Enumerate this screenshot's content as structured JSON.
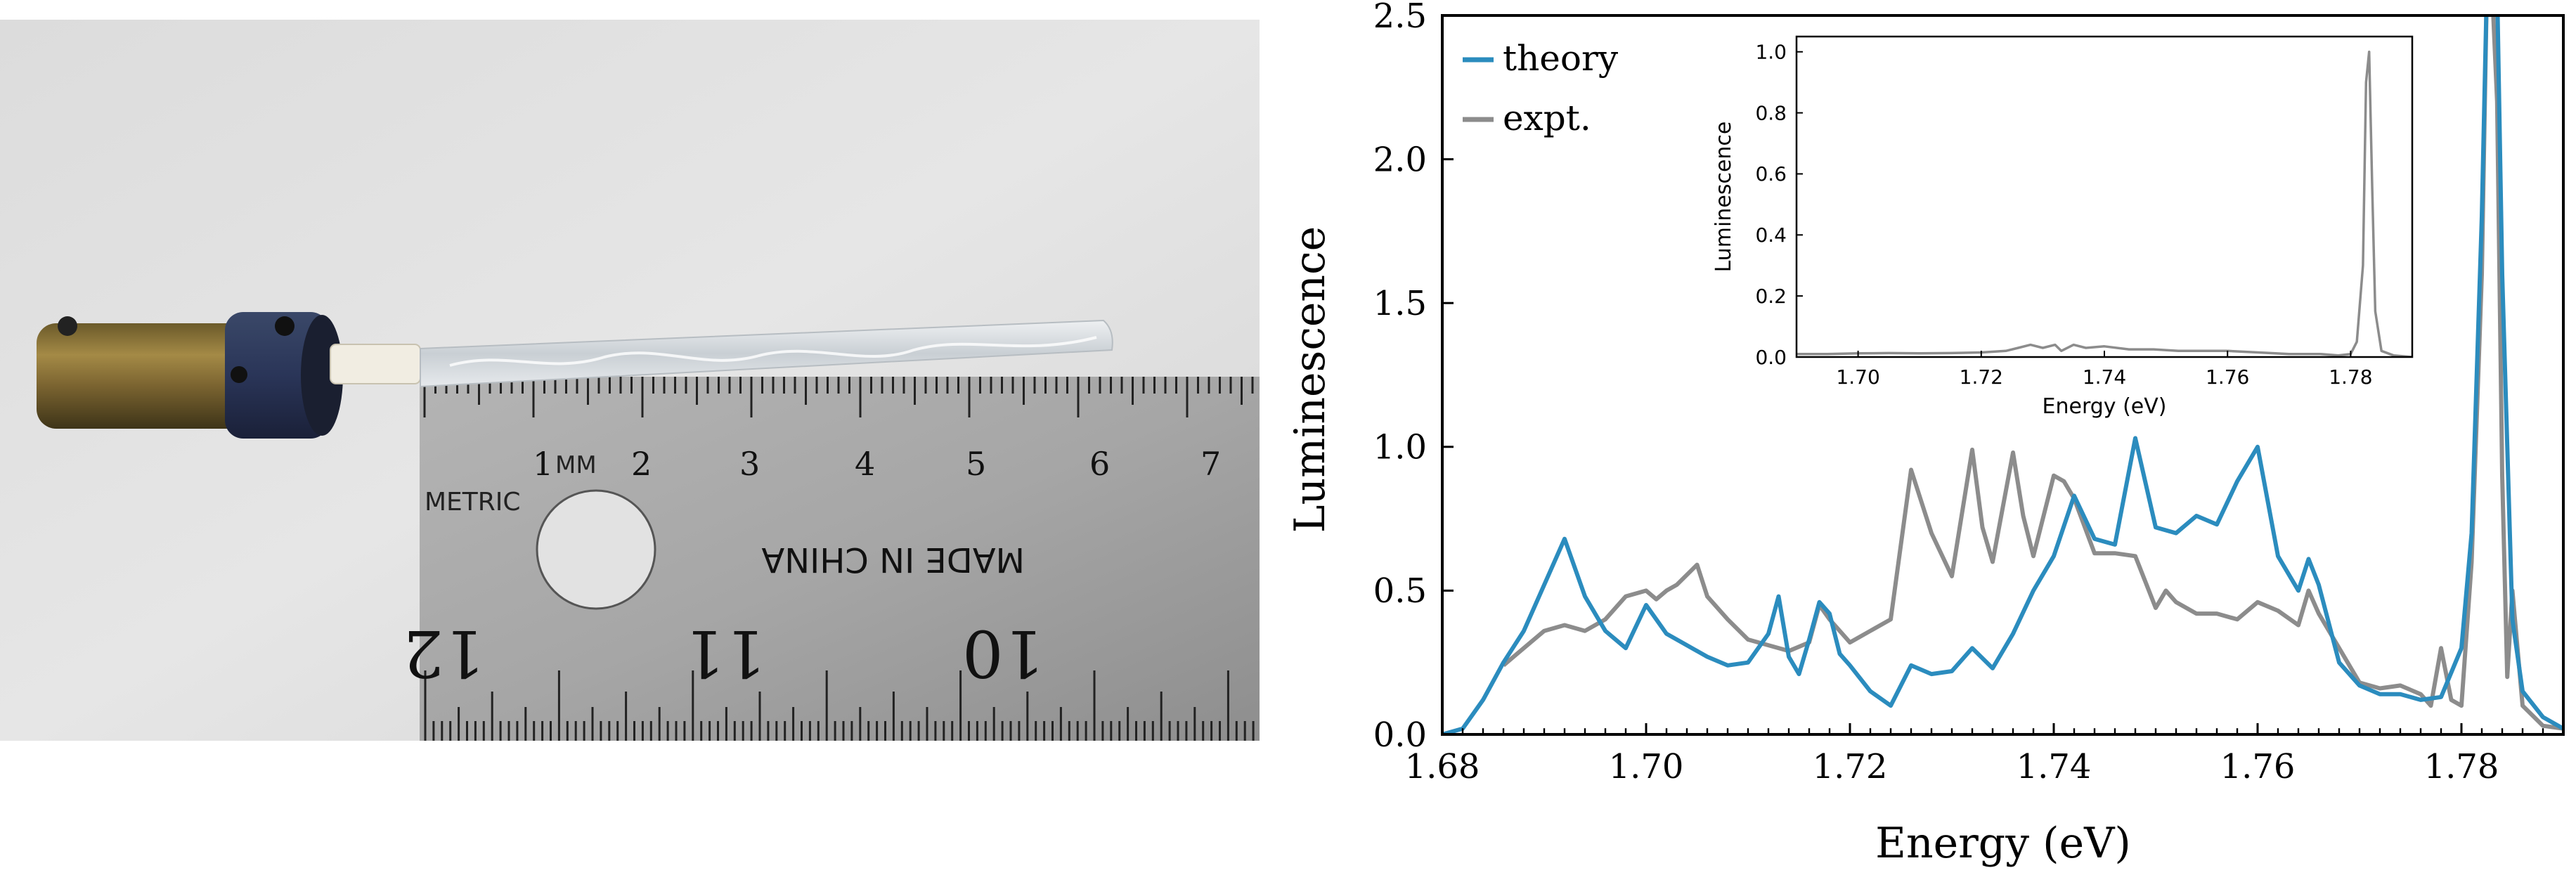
{
  "photo": {
    "ruler_text": {
      "metric": "METRIC",
      "mm": "MM",
      "made_in": "MADE IN CHINA",
      "mm_numbers": [
        "1",
        "2",
        "3",
        "4",
        "5",
        "6",
        "7"
      ],
      "inch_numbers": [
        "12",
        "11",
        "10"
      ]
    }
  },
  "chart_data": [
    {
      "type": "line",
      "xlabel": "Energy (eV)",
      "ylabel": "Luminescence",
      "xlim": [
        1.68,
        1.79
      ],
      "ylim": [
        0,
        2.5
      ],
      "xticks": [
        1.68,
        1.7,
        1.72,
        1.74,
        1.76,
        1.78
      ],
      "xtick_labels": [
        "1.68",
        "1.70",
        "1.72",
        "1.74",
        "1.76",
        "1.78"
      ],
      "yticks": [
        0.0,
        0.5,
        1.0,
        1.5,
        2.0,
        2.5
      ],
      "ytick_labels": [
        "0.0",
        "0.5",
        "1.0",
        "1.5",
        "2.0",
        "2.5"
      ],
      "legend": "top-left",
      "series": [
        {
          "name": "theory",
          "color": "#2b8cbe",
          "x": [
            1.68,
            1.682,
            1.684,
            1.686,
            1.688,
            1.69,
            1.692,
            1.694,
            1.696,
            1.698,
            1.7,
            1.702,
            1.704,
            1.706,
            1.708,
            1.71,
            1.712,
            1.713,
            1.714,
            1.715,
            1.716,
            1.717,
            1.718,
            1.719,
            1.72,
            1.722,
            1.724,
            1.726,
            1.728,
            1.73,
            1.732,
            1.734,
            1.736,
            1.738,
            1.74,
            1.742,
            1.744,
            1.746,
            1.748,
            1.75,
            1.752,
            1.754,
            1.756,
            1.758,
            1.76,
            1.762,
            1.764,
            1.765,
            1.766,
            1.768,
            1.77,
            1.772,
            1.774,
            1.776,
            1.778,
            1.78,
            1.781,
            1.782,
            1.7825,
            1.783,
            1.7835,
            1.784,
            1.785,
            1.786,
            1.788,
            1.79
          ],
          "y": [
            0.0,
            0.02,
            0.12,
            0.25,
            0.36,
            0.52,
            0.68,
            0.48,
            0.36,
            0.3,
            0.45,
            0.35,
            0.31,
            0.27,
            0.24,
            0.25,
            0.35,
            0.48,
            0.27,
            0.21,
            0.33,
            0.46,
            0.42,
            0.28,
            0.24,
            0.15,
            0.1,
            0.24,
            0.21,
            0.22,
            0.3,
            0.23,
            0.35,
            0.5,
            0.62,
            0.83,
            0.68,
            0.66,
            1.03,
            0.72,
            0.7,
            0.76,
            0.73,
            0.88,
            1.0,
            0.62,
            0.5,
            0.61,
            0.52,
            0.25,
            0.17,
            0.14,
            0.14,
            0.12,
            0.13,
            0.3,
            0.7,
            1.8,
            2.6,
            2.6,
            2.6,
            1.6,
            0.4,
            0.15,
            0.06,
            0.02
          ]
        },
        {
          "name": "expt.",
          "color": "#8c8c8c",
          "x": [
            1.686,
            1.688,
            1.69,
            1.692,
            1.694,
            1.696,
            1.698,
            1.7,
            1.701,
            1.702,
            1.703,
            1.705,
            1.706,
            1.708,
            1.71,
            1.712,
            1.714,
            1.716,
            1.717,
            1.718,
            1.72,
            1.722,
            1.724,
            1.726,
            1.728,
            1.73,
            1.732,
            1.733,
            1.734,
            1.736,
            1.737,
            1.738,
            1.74,
            1.741,
            1.742,
            1.744,
            1.746,
            1.748,
            1.75,
            1.751,
            1.752,
            1.754,
            1.756,
            1.758,
            1.76,
            1.762,
            1.764,
            1.765,
            1.766,
            1.768,
            1.77,
            1.772,
            1.774,
            1.776,
            1.777,
            1.778,
            1.779,
            1.78,
            1.781,
            1.782,
            1.7825,
            1.783,
            1.7835,
            1.784,
            1.7845,
            1.785,
            1.786,
            1.788,
            1.79
          ],
          "y": [
            0.24,
            0.3,
            0.36,
            0.38,
            0.36,
            0.4,
            0.48,
            0.5,
            0.47,
            0.5,
            0.52,
            0.59,
            0.48,
            0.4,
            0.33,
            0.31,
            0.29,
            0.32,
            0.45,
            0.4,
            0.32,
            0.36,
            0.4,
            0.92,
            0.7,
            0.55,
            0.99,
            0.72,
            0.6,
            0.98,
            0.76,
            0.62,
            0.9,
            0.88,
            0.82,
            0.63,
            0.63,
            0.62,
            0.44,
            0.5,
            0.46,
            0.42,
            0.42,
            0.4,
            0.46,
            0.43,
            0.38,
            0.5,
            0.42,
            0.3,
            0.18,
            0.16,
            0.17,
            0.14,
            0.1,
            0.3,
            0.12,
            0.1,
            0.6,
            1.6,
            2.6,
            2.6,
            2.2,
            0.9,
            0.2,
            0.5,
            0.1,
            0.03,
            0.02
          ]
        }
      ]
    },
    {
      "type": "line",
      "xlabel": "Energy (eV)",
      "ylabel": "Luminescence",
      "xlim": [
        1.69,
        1.79
      ],
      "ylim": [
        0,
        1.05
      ],
      "xticks": [
        1.7,
        1.72,
        1.74,
        1.76,
        1.78
      ],
      "xtick_labels": [
        "1.70",
        "1.72",
        "1.74",
        "1.76",
        "1.78"
      ],
      "yticks": [
        0.0,
        0.2,
        0.4,
        0.6,
        0.8,
        1.0
      ],
      "ytick_labels": [
        "0.0",
        "0.2",
        "0.4",
        "0.6",
        "0.8",
        "1.0"
      ],
      "series": [
        {
          "color": "#8c8c8c",
          "x": [
            1.69,
            1.695,
            1.7,
            1.705,
            1.71,
            1.715,
            1.72,
            1.724,
            1.726,
            1.728,
            1.73,
            1.732,
            1.733,
            1.735,
            1.737,
            1.74,
            1.744,
            1.748,
            1.752,
            1.756,
            1.76,
            1.765,
            1.77,
            1.775,
            1.778,
            1.78,
            1.781,
            1.782,
            1.7825,
            1.783,
            1.7835,
            1.784,
            1.785,
            1.787,
            1.79
          ],
          "y": [
            0.01,
            0.01,
            0.012,
            0.013,
            0.012,
            0.013,
            0.015,
            0.02,
            0.03,
            0.04,
            0.03,
            0.04,
            0.02,
            0.04,
            0.03,
            0.035,
            0.025,
            0.025,
            0.02,
            0.02,
            0.02,
            0.015,
            0.01,
            0.01,
            0.005,
            0.01,
            0.05,
            0.3,
            0.9,
            1.0,
            0.55,
            0.15,
            0.02,
            0.005,
            0.0
          ]
        }
      ]
    }
  ]
}
